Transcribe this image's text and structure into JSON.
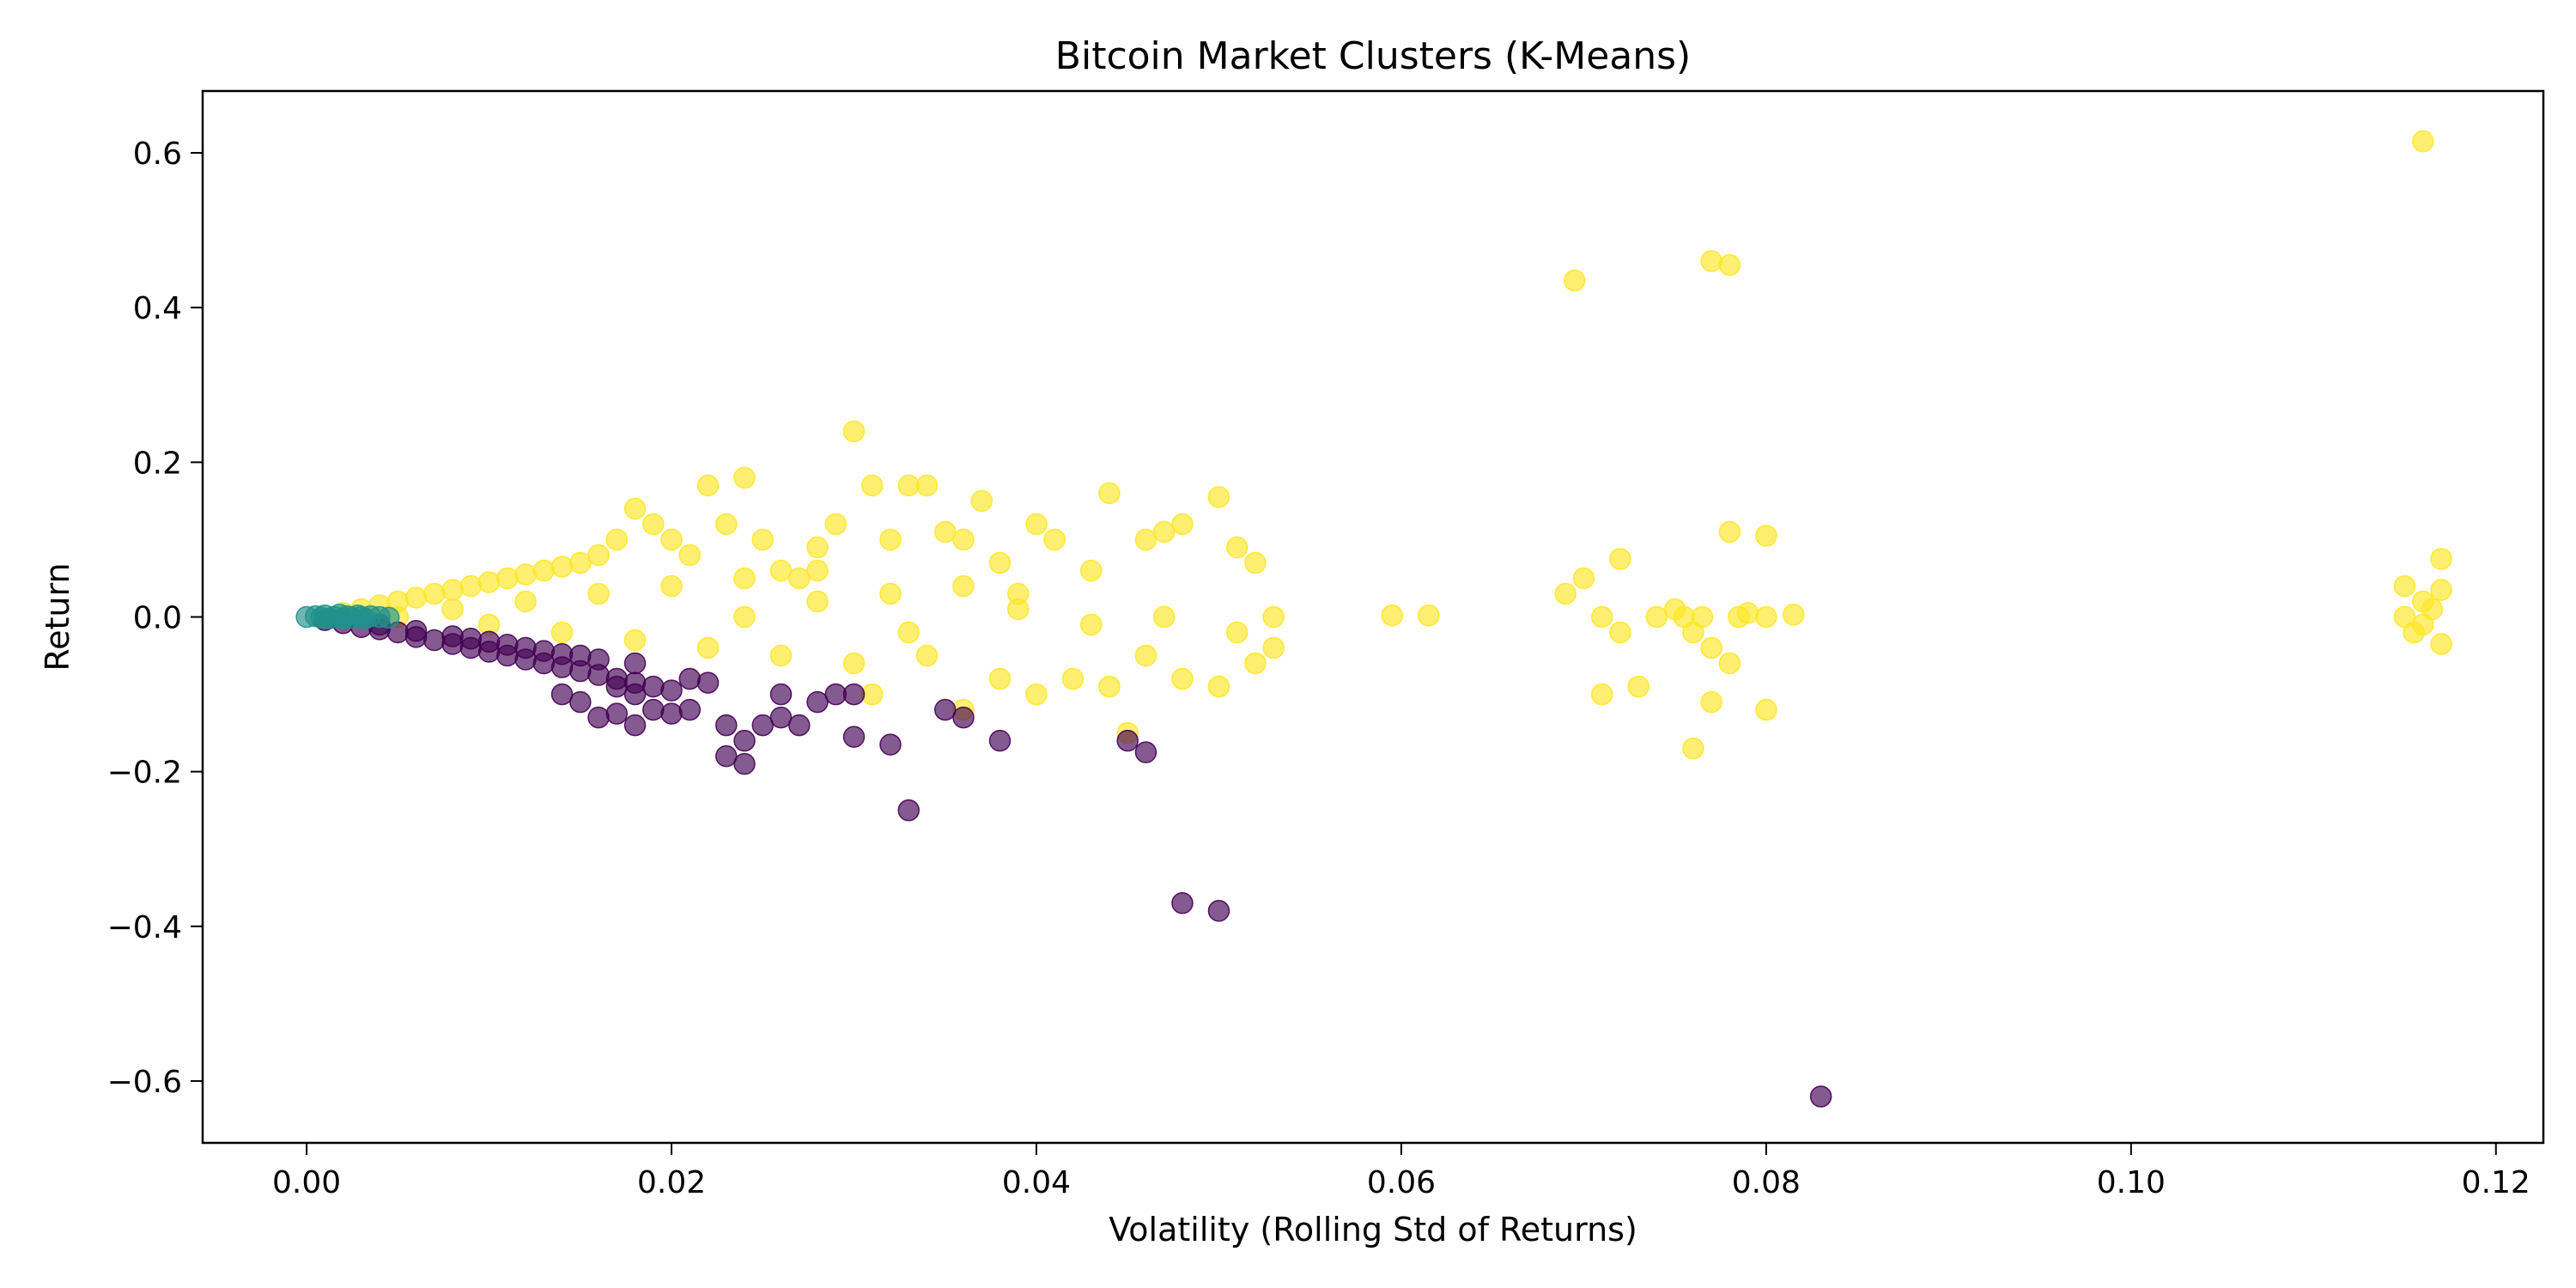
{
  "chart_data": {
    "type": "scatter",
    "title": "Bitcoin Market Clusters (K-Means)",
    "xlabel": "Volatility (Rolling Std of Returns)",
    "ylabel": "Return",
    "xlim": [
      -0.0057,
      0.1226
    ],
    "ylim": [
      -0.68,
      0.68
    ],
    "xticks": [
      0.0,
      0.02,
      0.04,
      0.06,
      0.08,
      0.1,
      0.12
    ],
    "xtick_labels": [
      "0.00",
      "0.02",
      "0.04",
      "0.06",
      "0.08",
      "0.10",
      "0.12"
    ],
    "yticks": [
      0.6,
      0.4,
      0.2,
      0.0,
      -0.2,
      -0.4,
      -0.6
    ],
    "ytick_labels": [
      "0.6",
      "0.4",
      "0.2",
      "0.0",
      "−0.2",
      "−0.4",
      "−0.6"
    ],
    "grid": false,
    "legend": "none",
    "series": [
      {
        "color": "#440154",
        "points": [
          [
            0.001,
            -0.004
          ],
          [
            0.002,
            -0.008
          ],
          [
            0.003,
            -0.013
          ],
          [
            0.004,
            -0.016
          ],
          [
            0.005,
            -0.02
          ],
          [
            0.006,
            -0.026
          ],
          [
            0.007,
            -0.03
          ],
          [
            0.008,
            -0.035
          ],
          [
            0.009,
            -0.04
          ],
          [
            0.01,
            -0.045
          ],
          [
            0.011,
            -0.05
          ],
          [
            0.012,
            -0.055
          ],
          [
            0.013,
            -0.06
          ],
          [
            0.014,
            -0.065
          ],
          [
            0.015,
            -0.07
          ],
          [
            0.016,
            -0.075
          ],
          [
            0.017,
            -0.08
          ],
          [
            0.018,
            -0.085
          ],
          [
            0.004,
            -0.01
          ],
          [
            0.006,
            -0.018
          ],
          [
            0.008,
            -0.025
          ],
          [
            0.01,
            -0.032
          ],
          [
            0.012,
            -0.04
          ],
          [
            0.014,
            -0.048
          ],
          [
            0.016,
            -0.055
          ],
          [
            0.018,
            -0.06
          ],
          [
            0.009,
            -0.028
          ],
          [
            0.011,
            -0.036
          ],
          [
            0.013,
            -0.044
          ],
          [
            0.015,
            -0.05
          ],
          [
            0.017,
            -0.09
          ],
          [
            0.018,
            -0.1
          ],
          [
            0.019,
            -0.09
          ],
          [
            0.02,
            -0.095
          ],
          [
            0.021,
            -0.08
          ],
          [
            0.022,
            -0.085
          ],
          [
            0.014,
            -0.1
          ],
          [
            0.015,
            -0.11
          ],
          [
            0.016,
            -0.13
          ],
          [
            0.017,
            -0.125
          ],
          [
            0.018,
            -0.14
          ],
          [
            0.019,
            -0.12
          ],
          [
            0.02,
            -0.125
          ],
          [
            0.021,
            -0.12
          ],
          [
            0.023,
            -0.14
          ],
          [
            0.023,
            -0.18
          ],
          [
            0.024,
            -0.19
          ],
          [
            0.024,
            -0.16
          ],
          [
            0.025,
            -0.14
          ],
          [
            0.026,
            -0.13
          ],
          [
            0.026,
            -0.1
          ],
          [
            0.027,
            -0.14
          ],
          [
            0.028,
            -0.11
          ],
          [
            0.029,
            -0.1
          ],
          [
            0.03,
            -0.1
          ],
          [
            0.03,
            -0.155
          ],
          [
            0.032,
            -0.165
          ],
          [
            0.033,
            -0.25
          ],
          [
            0.035,
            -0.12
          ],
          [
            0.036,
            -0.13
          ],
          [
            0.038,
            -0.16
          ],
          [
            0.045,
            -0.16
          ],
          [
            0.046,
            -0.175
          ],
          [
            0.048,
            -0.37
          ],
          [
            0.05,
            -0.38
          ],
          [
            0.083,
            -0.62
          ]
        ]
      },
      {
        "color": "#21918c",
        "points": [
          [
            0.0,
            0.0
          ],
          [
            0.0005,
            0.001
          ],
          [
            0.0008,
            -0.001
          ],
          [
            0.001,
            0.002
          ],
          [
            0.0012,
            -0.002
          ],
          [
            0.0015,
            0.0
          ],
          [
            0.0018,
            0.003
          ],
          [
            0.002,
            -0.002
          ],
          [
            0.0022,
            0.001
          ],
          [
            0.0025,
            -0.001
          ],
          [
            0.0028,
            0.002
          ],
          [
            0.003,
            0.0
          ],
          [
            0.0032,
            -0.002
          ],
          [
            0.0035,
            0.001
          ],
          [
            0.004,
            0.0
          ],
          [
            0.0045,
            -0.001
          ]
        ]
      },
      {
        "color": "#fde725",
        "points": [
          [
            0.002,
            0.005
          ],
          [
            0.003,
            0.01
          ],
          [
            0.004,
            0.015
          ],
          [
            0.005,
            0.02
          ],
          [
            0.006,
            0.025
          ],
          [
            0.007,
            0.03
          ],
          [
            0.008,
            0.035
          ],
          [
            0.009,
            0.04
          ],
          [
            0.01,
            0.045
          ],
          [
            0.011,
            0.05
          ],
          [
            0.012,
            0.055
          ],
          [
            0.013,
            0.06
          ],
          [
            0.014,
            0.065
          ],
          [
            0.015,
            0.07
          ],
          [
            0.016,
            0.08
          ],
          [
            0.017,
            0.1
          ],
          [
            0.018,
            0.14
          ],
          [
            0.019,
            0.12
          ],
          [
            0.02,
            0.1
          ],
          [
            0.021,
            0.08
          ],
          [
            0.022,
            0.17
          ],
          [
            0.023,
            0.12
          ],
          [
            0.024,
            0.18
          ],
          [
            0.025,
            0.1
          ],
          [
            0.026,
            0.06
          ],
          [
            0.027,
            0.05
          ],
          [
            0.028,
            0.09
          ],
          [
            0.029,
            0.12
          ],
          [
            0.03,
            0.24
          ],
          [
            0.031,
            0.17
          ],
          [
            0.032,
            0.1
          ],
          [
            0.033,
            0.17
          ],
          [
            0.034,
            0.17
          ],
          [
            0.035,
            0.11
          ],
          [
            0.036,
            0.1
          ],
          [
            0.037,
            0.15
          ],
          [
            0.038,
            0.07
          ],
          [
            0.039,
            0.03
          ],
          [
            0.04,
            0.12
          ],
          [
            0.041,
            0.1
          ],
          [
            0.043,
            0.06
          ],
          [
            0.044,
            0.16
          ],
          [
            0.046,
            0.1
          ],
          [
            0.047,
            0.11
          ],
          [
            0.048,
            0.12
          ],
          [
            0.05,
            0.155
          ],
          [
            0.051,
            0.09
          ],
          [
            0.052,
            0.07
          ],
          [
            0.005,
            0.0
          ],
          [
            0.008,
            0.01
          ],
          [
            0.01,
            -0.01
          ],
          [
            0.012,
            0.02
          ],
          [
            0.014,
            -0.02
          ],
          [
            0.016,
            0.03
          ],
          [
            0.018,
            -0.03
          ],
          [
            0.02,
            0.04
          ],
          [
            0.022,
            -0.04
          ],
          [
            0.024,
            0.05
          ],
          [
            0.026,
            -0.05
          ],
          [
            0.028,
            0.06
          ],
          [
            0.03,
            -0.06
          ],
          [
            0.032,
            0.03
          ],
          [
            0.034,
            -0.05
          ],
          [
            0.036,
            0.04
          ],
          [
            0.038,
            -0.08
          ],
          [
            0.04,
            -0.1
          ],
          [
            0.042,
            -0.08
          ],
          [
            0.044,
            -0.09
          ],
          [
            0.046,
            -0.05
          ],
          [
            0.048,
            -0.08
          ],
          [
            0.05,
            -0.09
          ],
          [
            0.052,
            -0.06
          ],
          [
            0.053,
            -0.04
          ],
          [
            0.045,
            -0.15
          ],
          [
            0.036,
            -0.12
          ],
          [
            0.031,
            -0.1
          ],
          [
            0.024,
            0.0
          ],
          [
            0.028,
            0.02
          ],
          [
            0.033,
            -0.02
          ],
          [
            0.039,
            0.01
          ],
          [
            0.043,
            -0.01
          ],
          [
            0.047,
            0.0
          ],
          [
            0.051,
            -0.02
          ],
          [
            0.053,
            0.0
          ],
          [
            0.0595,
            0.002
          ],
          [
            0.0615,
            0.002
          ],
          [
            0.0695,
            0.435
          ],
          [
            0.069,
            0.03
          ],
          [
            0.07,
            0.05
          ],
          [
            0.071,
            0.0
          ],
          [
            0.072,
            -0.02
          ],
          [
            0.072,
            0.075
          ],
          [
            0.071,
            -0.1
          ],
          [
            0.073,
            -0.09
          ],
          [
            0.074,
            0.0
          ],
          [
            0.075,
            0.01
          ],
          [
            0.076,
            -0.17
          ],
          [
            0.076,
            -0.02
          ],
          [
            0.077,
            0.46
          ],
          [
            0.077,
            -0.04
          ],
          [
            0.078,
            0.455
          ],
          [
            0.078,
            -0.06
          ],
          [
            0.077,
            -0.11
          ],
          [
            0.078,
            0.11
          ],
          [
            0.079,
            0.005
          ],
          [
            0.08,
            0.105
          ],
          [
            0.08,
            -0.12
          ],
          [
            0.08,
            0.0
          ],
          [
            0.0815,
            0.003
          ],
          [
            0.0755,
            0.0
          ],
          [
            0.0765,
            0.0
          ],
          [
            0.0785,
            0.0
          ],
          [
            0.116,
            0.615
          ],
          [
            0.115,
            0.04
          ],
          [
            0.115,
            0.0
          ],
          [
            0.116,
            -0.01
          ],
          [
            0.116,
            0.02
          ],
          [
            0.117,
            0.035
          ],
          [
            0.117,
            -0.035
          ],
          [
            0.117,
            0.075
          ],
          [
            0.1155,
            -0.02
          ],
          [
            0.1165,
            0.01
          ]
        ]
      }
    ]
  }
}
